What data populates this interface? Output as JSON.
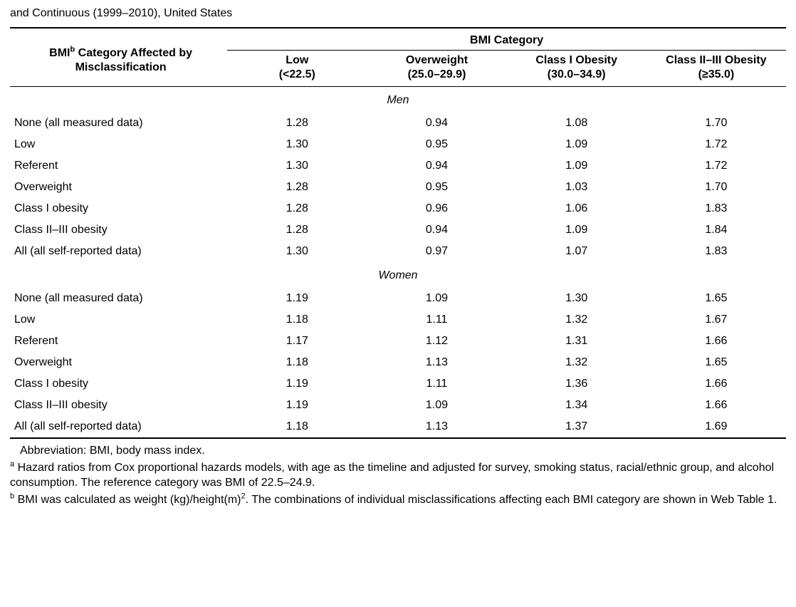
{
  "cutoff_title": "and Continuous (1999–2010), United States",
  "table": {
    "stub_header_line1": "BMI",
    "stub_header_sup": "b",
    "stub_header_line1b": " Category Affected by",
    "stub_header_line2": "Misclassification",
    "span_header": "BMI Category",
    "columns": [
      {
        "title": "Low",
        "sub": "(<22.5)"
      },
      {
        "title": "Overweight",
        "sub": "(25.0–29.9)"
      },
      {
        "title": "Class I Obesity",
        "sub": "(30.0–34.9)"
      },
      {
        "title": "Class II–III Obesity",
        "sub": "(≥35.0)"
      }
    ],
    "sections": [
      {
        "label": "Men",
        "rows": [
          {
            "label": "None (all measured data)",
            "v": [
              "1.28",
              "0.94",
              "1.08",
              "1.70"
            ]
          },
          {
            "label": "Low",
            "v": [
              "1.30",
              "0.95",
              "1.09",
              "1.72"
            ]
          },
          {
            "label": "Referent",
            "v": [
              "1.30",
              "0.94",
              "1.09",
              "1.72"
            ]
          },
          {
            "label": "Overweight",
            "v": [
              "1.28",
              "0.95",
              "1.03",
              "1.70"
            ]
          },
          {
            "label": "Class I obesity",
            "v": [
              "1.28",
              "0.96",
              "1.06",
              "1.83"
            ]
          },
          {
            "label": "Class II–III obesity",
            "v": [
              "1.28",
              "0.94",
              "1.09",
              "1.84"
            ]
          },
          {
            "label": "All (all self-reported data)",
            "v": [
              "1.30",
              "0.97",
              "1.07",
              "1.83"
            ]
          }
        ]
      },
      {
        "label": "Women",
        "rows": [
          {
            "label": "None (all measured data)",
            "v": [
              "1.19",
              "1.09",
              "1.30",
              "1.65"
            ]
          },
          {
            "label": "Low",
            "v": [
              "1.18",
              "1.11",
              "1.32",
              "1.67"
            ]
          },
          {
            "label": "Referent",
            "v": [
              "1.17",
              "1.12",
              "1.31",
              "1.66"
            ]
          },
          {
            "label": "Overweight",
            "v": [
              "1.18",
              "1.13",
              "1.32",
              "1.65"
            ]
          },
          {
            "label": "Class I obesity",
            "v": [
              "1.19",
              "1.11",
              "1.36",
              "1.66"
            ]
          },
          {
            "label": "Class II–III obesity",
            "v": [
              "1.19",
              "1.09",
              "1.34",
              "1.66"
            ]
          },
          {
            "label": "All (all self-reported data)",
            "v": [
              "1.18",
              "1.13",
              "1.37",
              "1.69"
            ]
          }
        ]
      }
    ]
  },
  "footnotes": {
    "abbrev": "Abbreviation: BMI, body mass index.",
    "a_sup": "a",
    "a_text": " Hazard ratios from Cox proportional hazards models, with age as the timeline and adjusted for survey, smoking status, racial/ethnic group, and alcohol consumption. The reference category was BMI of 22.5–24.9.",
    "b_sup": "b",
    "b_text_1": " BMI was calculated as weight (kg)/height(m)",
    "b_text_sup2": "2",
    "b_text_2": ". The combinations of individual misclassifications affecting each BMI category are shown in Web Table 1."
  }
}
